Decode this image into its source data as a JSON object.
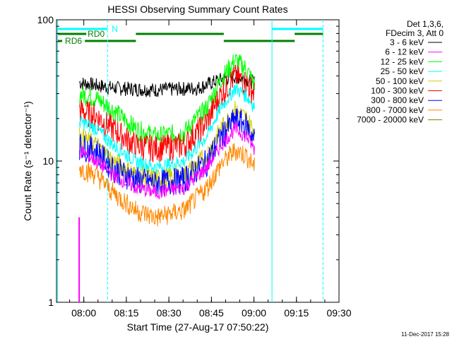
{
  "chart_data": {
    "type": "line",
    "title": "HESSI Observing Summary Count Rates",
    "xlabel": "Start Time (27-Aug-17 07:50:22)",
    "ylabel": "Count Rate (s⁻¹ detector⁻¹)",
    "y_scale": "log",
    "ylim": [
      1,
      100
    ],
    "x_range_minutes": [
      "07:50:22",
      "09:30:00"
    ],
    "x_ticks": [
      "08:00",
      "08:15",
      "08:30",
      "08:45",
      "09:00",
      "09:15",
      "09:30"
    ],
    "y_ticks": [
      "1",
      "10",
      "100"
    ],
    "footer_date": "11-Dec-2017 15:28",
    "legend": {
      "header": [
        "Det 1,3,6,",
        "FDecim 3, Att 0"
      ],
      "entries": [
        {
          "label": "3 - 6 keV",
          "color": "#000000"
        },
        {
          "label": "6 - 12 keV",
          "color": "#ff00ff"
        },
        {
          "label": "12 - 25 keV",
          "color": "#00ff00"
        },
        {
          "label": "25 - 50 keV",
          "color": "#00ffff"
        },
        {
          "label": "50 - 100 keV",
          "color": "#cccc00"
        },
        {
          "label": "100 - 300 keV",
          "color": "#ff0000"
        },
        {
          "label": "300 - 800 keV",
          "color": "#0000ff"
        },
        {
          "label": "800 - 7000 keV",
          "color": "#ff8800"
        },
        {
          "label": "7000 - 20000 keV",
          "color": "#808000"
        }
      ]
    },
    "flags": {
      "N": {
        "label": "N",
        "color": "#00ffff"
      },
      "RD0": {
        "label": "RD0",
        "color": "#008000"
      },
      "RD6": {
        "label": "RD6",
        "color": "#008000"
      }
    },
    "series": [
      {
        "name": "3 - 6 keV",
        "color": "#000000",
        "x": [
          8.1,
          20,
          35,
          50,
          58,
          63,
          67,
          70
        ],
        "y": [
          36,
          33,
          32,
          33,
          38,
          40,
          38,
          36
        ]
      },
      {
        "name": "12 - 25 keV",
        "color": "#00ff00",
        "x": [
          8.1,
          14,
          20,
          28,
          35,
          45,
          53,
          58,
          63,
          67,
          70
        ],
        "y": [
          30,
          28,
          23,
          17,
          15,
          16,
          24,
          38,
          52,
          45,
          34
        ]
      },
      {
        "name": "100 - 300 keV",
        "color": "#ff0000",
        "x": [
          8.1,
          14,
          20,
          28,
          35,
          45,
          53,
          58,
          63,
          67,
          70
        ],
        "y": [
          23,
          21,
          17,
          13,
          12.5,
          13,
          19,
          30,
          40,
          36,
          30
        ]
      },
      {
        "name": "25 - 50 keV",
        "color": "#00ffff",
        "x": [
          8.1,
          14,
          20,
          28,
          35,
          45,
          53,
          58,
          63,
          67,
          70
        ],
        "y": [
          19,
          17,
          13,
          10,
          9,
          10,
          15,
          24,
          33,
          29,
          24
        ]
      },
      {
        "name": "50 - 100 keV",
        "color": "#cccc00",
        "x": [
          8.1,
          14,
          20,
          28,
          35,
          45,
          53,
          58,
          63,
          67,
          70
        ],
        "y": [
          15,
          13,
          10,
          8,
          7.5,
          8,
          11,
          17,
          23,
          20,
          16
        ]
      },
      {
        "name": "300 - 800 keV",
        "color": "#0000ff",
        "x": [
          8.1,
          14,
          20,
          28,
          35,
          45,
          53,
          58,
          63,
          67,
          70
        ],
        "y": [
          13,
          12,
          9,
          7.5,
          7,
          7.5,
          10,
          15,
          20,
          18,
          14
        ]
      },
      {
        "name": "6 - 12 keV",
        "color": "#ff00ff",
        "x": [
          8.1,
          14,
          20,
          28,
          35,
          45,
          53,
          58,
          63,
          67,
          70
        ],
        "y": [
          12,
          10,
          8,
          6.5,
          6,
          6.5,
          9,
          13,
          17,
          15,
          12
        ]
      },
      {
        "name": "800 - 7000 keV",
        "color": "#ff8800",
        "x": [
          8.1,
          14,
          20,
          28,
          35,
          45,
          53,
          58,
          63,
          67,
          70
        ],
        "y": [
          9,
          8,
          6,
          4.5,
          4,
          4.5,
          6.5,
          9.5,
          12,
          11,
          9
        ]
      },
      {
        "name": "7000 - 20000 keV",
        "color": "#808000",
        "x": [
          8.1,
          20,
          35,
          50,
          63,
          70
        ],
        "y": [
          1,
          1,
          1,
          1,
          1,
          1
        ]
      }
    ],
    "spike": {
      "x": 8.0,
      "y_from": 1,
      "y_to": 4,
      "color": "#ff00ff"
    }
  }
}
